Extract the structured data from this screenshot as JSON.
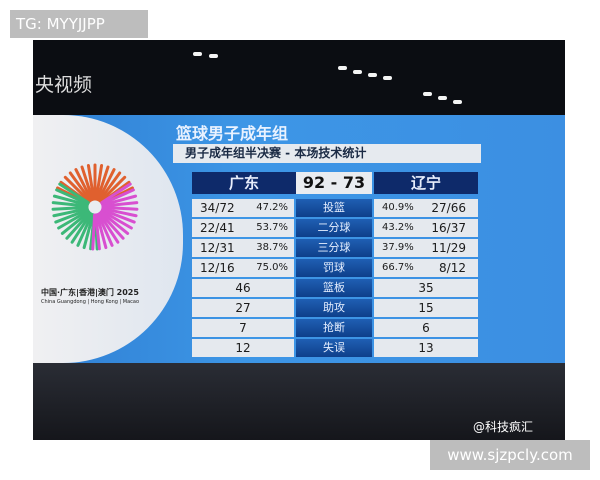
{
  "watermark_top": "TG: MYYJJPP",
  "watermark_bottom": "www.sjzpcly.com",
  "broadcaster": "央视频",
  "weibo": "@科技疯汇",
  "logo": {
    "line1": "中国·广东|香港|澳门 2025",
    "line2": "China Guangdong | Hong Kong | Macao"
  },
  "board": {
    "title": "篮球男子成年组",
    "subtitle": "男子成年组半决赛 - 本场技术统计",
    "home": "广东",
    "away": "辽宁",
    "score": "92 - 73",
    "rows": [
      {
        "label": "投篮",
        "home": "34/72",
        "home_pct": "47.2%",
        "away_pct": "40.9%",
        "away": "27/66"
      },
      {
        "label": "二分球",
        "home": "22/41",
        "home_pct": "53.7%",
        "away_pct": "43.2%",
        "away": "16/37"
      },
      {
        "label": "三分球",
        "home": "12/31",
        "home_pct": "38.7%",
        "away_pct": "37.9%",
        "away": "11/29"
      },
      {
        "label": "罚球",
        "home": "12/16",
        "home_pct": "75.0%",
        "away_pct": "66.7%",
        "away": "8/12"
      },
      {
        "label": "篮板",
        "home": "46",
        "away": "35"
      },
      {
        "label": "助攻",
        "home": "27",
        "away": "15"
      },
      {
        "label": "抢断",
        "home": "7",
        "away": "6"
      },
      {
        "label": "失误",
        "home": "12",
        "away": "13"
      }
    ]
  }
}
